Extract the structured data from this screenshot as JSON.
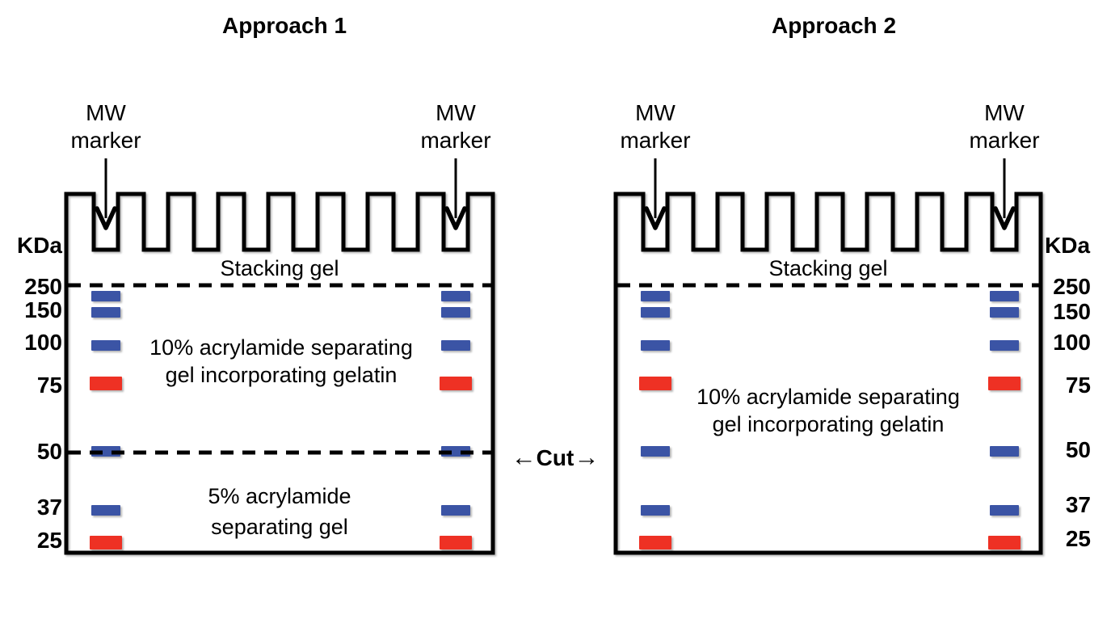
{
  "colors": {
    "band_blue": "#3B54A5",
    "band_red": "#EE3124",
    "ink": "#000000"
  },
  "ladder": {
    "unit": "KDa",
    "values": [
      "250",
      "150",
      "100",
      "75",
      "50",
      "37",
      "25"
    ]
  },
  "bands": [
    {
      "kda": "250",
      "color": "blue"
    },
    {
      "kda": "150",
      "color": "blue"
    },
    {
      "kda": "100",
      "color": "blue"
    },
    {
      "kda": "75",
      "color": "red"
    },
    {
      "kda": "50",
      "color": "blue"
    },
    {
      "kda": "37",
      "color": "blue"
    },
    {
      "kda": "25",
      "color": "red"
    }
  ],
  "mw_marker": {
    "line1": "MW",
    "line2": "marker"
  },
  "panels": [
    {
      "title": "Approach 1",
      "stacking_label": "Stacking gel",
      "regions": [
        {
          "line1": "10% acrylamide separating",
          "line2": "gel incorporating gelatin"
        },
        {
          "line1": "5% acrylamide",
          "line2": "separating gel"
        }
      ]
    },
    {
      "title": "Approach 2",
      "stacking_label": "Stacking gel",
      "regions": [
        {
          "line1": "10% acrylamide separating",
          "line2": "gel incorporating gelatin"
        }
      ]
    }
  ],
  "cut": {
    "left_arrow": "←",
    "label": "Cut",
    "right_arrow": "→"
  }
}
